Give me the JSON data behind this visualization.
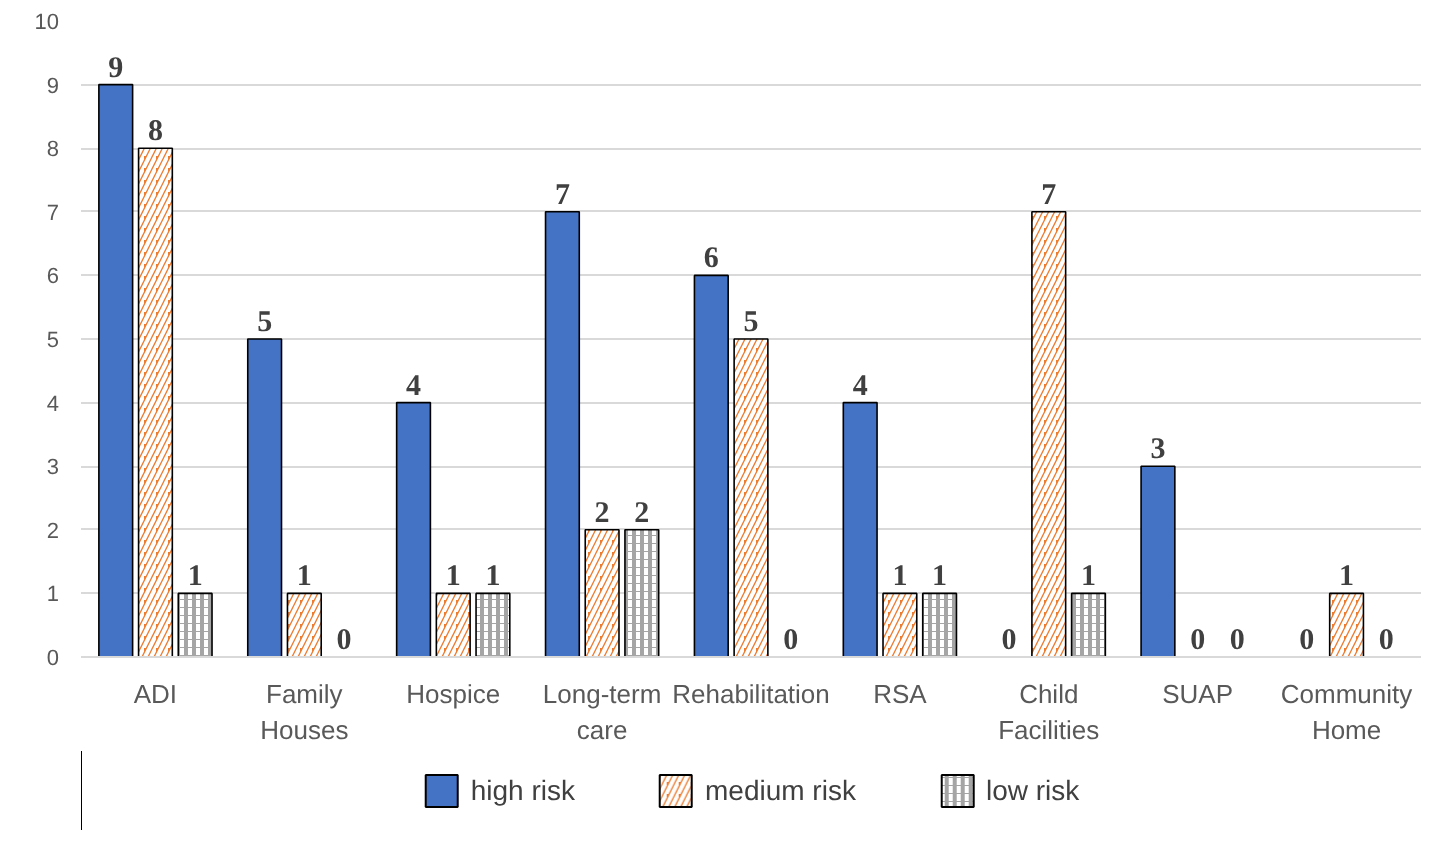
{
  "chart_data": {
    "type": "bar",
    "categories": [
      "ADI",
      "Family Houses",
      "Hospice",
      "Long-term care",
      "Rehabilitation",
      "RSA",
      "Child Facilities",
      "SUAP",
      "Community Home"
    ],
    "series": [
      {
        "name": "high risk",
        "color": "#4472c4",
        "values": [
          9,
          5,
          4,
          7,
          6,
          4,
          0,
          3,
          0
        ]
      },
      {
        "name": "medium risk",
        "color": "#ed7d31",
        "values": [
          8,
          1,
          1,
          2,
          5,
          1,
          7,
          0,
          1
        ]
      },
      {
        "name": "low risk",
        "color": "#a5a5a5",
        "values": [
          1,
          0,
          1,
          2,
          0,
          1,
          1,
          0,
          0
        ]
      }
    ],
    "ylim": [
      0,
      10
    ],
    "yticks": [
      0,
      1,
      2,
      3,
      4,
      5,
      6,
      7,
      8,
      9,
      10
    ],
    "grid": "y",
    "legend": "bottom",
    "data_labels": true
  }
}
